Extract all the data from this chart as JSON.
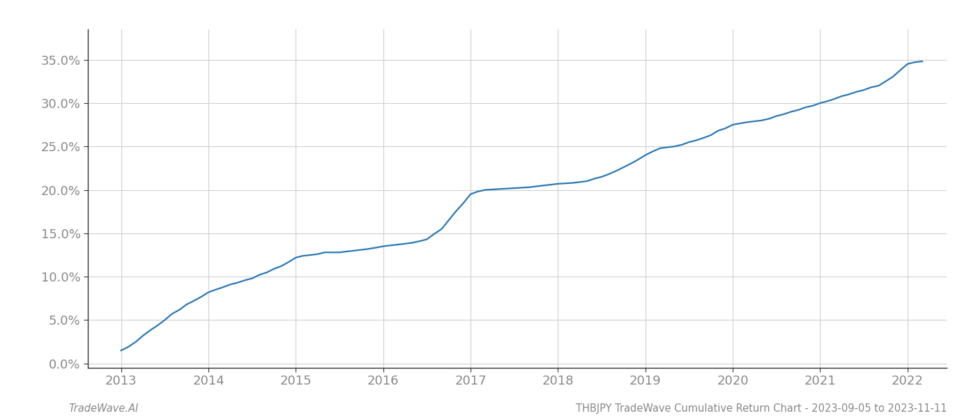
{
  "title": "",
  "footer_left": "TradeWave.AI",
  "footer_right": "THBJPY TradeWave Cumulative Return Chart - 2023-09-05 to 2023-11-11",
  "line_color": "#2878b5",
  "background_color": "#ffffff",
  "grid_color": "#d0d0d0",
  "x_values": [
    2013.0,
    2013.08,
    2013.17,
    2013.25,
    2013.33,
    2013.42,
    2013.5,
    2013.58,
    2013.67,
    2013.75,
    2013.83,
    2013.92,
    2014.0,
    2014.08,
    2014.17,
    2014.25,
    2014.33,
    2014.42,
    2014.5,
    2014.58,
    2014.67,
    2014.75,
    2014.83,
    2014.92,
    2015.0,
    2015.08,
    2015.17,
    2015.25,
    2015.33,
    2015.42,
    2015.5,
    2015.58,
    2015.67,
    2015.75,
    2015.83,
    2015.92,
    2016.0,
    2016.08,
    2016.17,
    2016.25,
    2016.33,
    2016.42,
    2016.5,
    2016.58,
    2016.67,
    2016.75,
    2016.83,
    2016.92,
    2017.0,
    2017.08,
    2017.17,
    2017.25,
    2017.33,
    2017.42,
    2017.5,
    2017.58,
    2017.67,
    2017.75,
    2017.83,
    2017.92,
    2018.0,
    2018.08,
    2018.17,
    2018.25,
    2018.33,
    2018.42,
    2018.5,
    2018.58,
    2018.67,
    2018.75,
    2018.83,
    2018.92,
    2019.0,
    2019.08,
    2019.17,
    2019.25,
    2019.33,
    2019.42,
    2019.5,
    2019.58,
    2019.67,
    2019.75,
    2019.83,
    2019.92,
    2020.0,
    2020.08,
    2020.17,
    2020.25,
    2020.33,
    2020.42,
    2020.5,
    2020.58,
    2020.67,
    2020.75,
    2020.83,
    2020.92,
    2021.0,
    2021.08,
    2021.17,
    2021.25,
    2021.33,
    2021.42,
    2021.5,
    2021.58,
    2021.67,
    2021.75,
    2021.83,
    2021.92,
    2022.0,
    2022.08,
    2022.17
  ],
  "y_values": [
    1.5,
    1.9,
    2.5,
    3.2,
    3.8,
    4.4,
    5.0,
    5.7,
    6.2,
    6.8,
    7.2,
    7.7,
    8.2,
    8.5,
    8.8,
    9.1,
    9.3,
    9.6,
    9.8,
    10.2,
    10.5,
    10.9,
    11.2,
    11.7,
    12.2,
    12.4,
    12.5,
    12.6,
    12.8,
    12.8,
    12.8,
    12.9,
    13.0,
    13.1,
    13.2,
    13.35,
    13.5,
    13.6,
    13.7,
    13.8,
    13.9,
    14.1,
    14.3,
    14.9,
    15.5,
    16.5,
    17.5,
    18.5,
    19.5,
    19.8,
    20.0,
    20.05,
    20.1,
    20.15,
    20.2,
    20.25,
    20.3,
    20.4,
    20.5,
    20.6,
    20.7,
    20.75,
    20.8,
    20.9,
    21.0,
    21.3,
    21.5,
    21.8,
    22.2,
    22.6,
    23.0,
    23.5,
    24.0,
    24.4,
    24.8,
    24.9,
    25.0,
    25.2,
    25.5,
    25.7,
    26.0,
    26.3,
    26.8,
    27.1,
    27.5,
    27.65,
    27.8,
    27.9,
    28.0,
    28.2,
    28.5,
    28.7,
    29.0,
    29.2,
    29.5,
    29.7,
    30.0,
    30.2,
    30.5,
    30.8,
    31.0,
    31.3,
    31.5,
    31.8,
    32.0,
    32.5,
    33.0,
    33.8,
    34.5,
    34.7,
    34.8
  ],
  "xlim": [
    2012.62,
    2022.45
  ],
  "ylim": [
    -0.5,
    38.5
  ],
  "yticks": [
    0.0,
    5.0,
    10.0,
    15.0,
    20.0,
    25.0,
    30.0,
    35.0
  ],
  "xticks": [
    2013,
    2014,
    2015,
    2016,
    2017,
    2018,
    2019,
    2020,
    2021,
    2022
  ],
  "line_width": 1.6,
  "footer_fontsize": 10.5,
  "tick_fontsize": 13,
  "tick_color": "#888888"
}
